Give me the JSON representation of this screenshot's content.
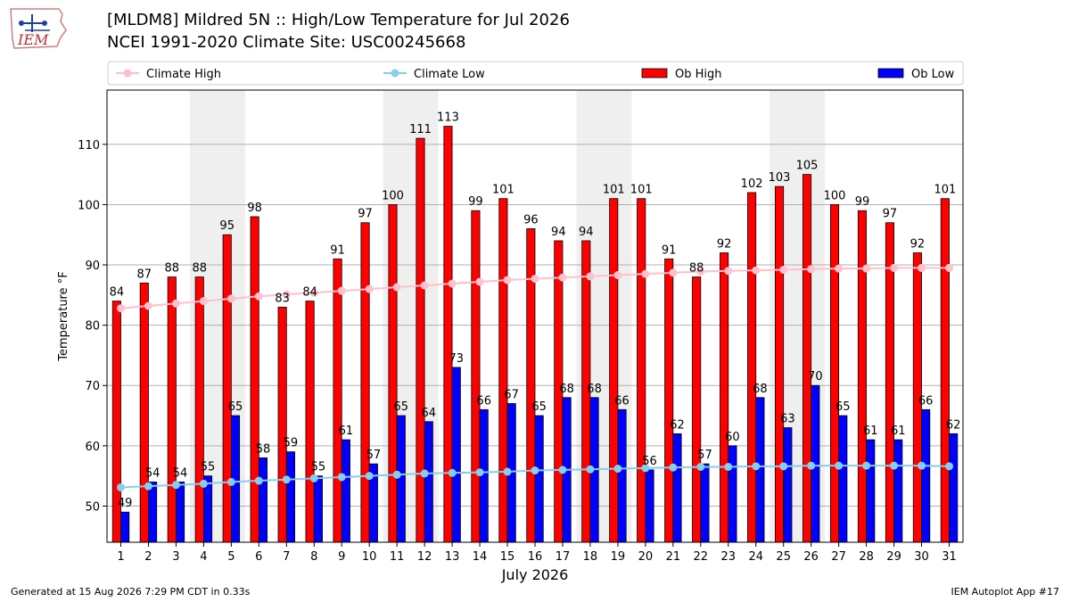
{
  "header": {
    "title_line1": "[MLDM8] Mildred 5N :: High/Low Temperature for Jul 2026",
    "title_line2": "NCEI 1991-2020 Climate Site: USC00245668",
    "logo_text": "IEM"
  },
  "footer": {
    "left": "Generated at 15 Aug 2026 7:29 PM CDT in 0.33s",
    "right": "IEM Autoplot App #17"
  },
  "chart_data": {
    "type": "bar",
    "xlabel": "July 2026",
    "ylabel": "Temperature °F",
    "ylim": [
      44,
      119
    ],
    "yticks": [
      50,
      60,
      70,
      80,
      90,
      100,
      110
    ],
    "grid": "horizontal",
    "legend_position": "top",
    "weekend_shading_days": [
      4,
      5,
      11,
      12,
      18,
      19,
      25,
      26
    ],
    "categories": [
      "1",
      "2",
      "3",
      "4",
      "5",
      "6",
      "7",
      "8",
      "9",
      "10",
      "11",
      "12",
      "13",
      "14",
      "15",
      "16",
      "17",
      "18",
      "19",
      "20",
      "21",
      "22",
      "23",
      "24",
      "25",
      "26",
      "27",
      "28",
      "29",
      "30",
      "31"
    ],
    "series": [
      {
        "name": "Ob High",
        "kind": "bar",
        "color": "#ff0000",
        "values": [
          84,
          87,
          88,
          88,
          95,
          98,
          83,
          84,
          91,
          97,
          100,
          111,
          113,
          99,
          101,
          96,
          94,
          94,
          101,
          101,
          91,
          88,
          92,
          102,
          103,
          105,
          100,
          99,
          97,
          92,
          101
        ]
      },
      {
        "name": "Ob Low",
        "kind": "bar",
        "color": "#0000ff",
        "values": [
          49,
          54,
          54,
          55,
          65,
          58,
          59,
          55,
          61,
          57,
          65,
          64,
          73,
          66,
          67,
          65,
          68,
          68,
          66,
          56,
          62,
          57,
          60,
          68,
          63,
          70,
          65,
          61,
          61,
          66,
          62
        ]
      },
      {
        "name": "Climate High",
        "kind": "line",
        "color": "#ffc0cb",
        "values": [
          82.8,
          83.2,
          83.6,
          84.0,
          84.4,
          84.8,
          85.1,
          85.4,
          85.7,
          86.0,
          86.3,
          86.6,
          86.9,
          87.2,
          87.5,
          87.7,
          87.9,
          88.1,
          88.3,
          88.5,
          88.7,
          88.9,
          89.0,
          89.1,
          89.2,
          89.3,
          89.4,
          89.4,
          89.5,
          89.5,
          89.5
        ]
      },
      {
        "name": "Climate Low",
        "kind": "line",
        "color": "#87ceeb",
        "values": [
          53.1,
          53.3,
          53.5,
          53.7,
          54.0,
          54.2,
          54.4,
          54.6,
          54.8,
          55.0,
          55.2,
          55.4,
          55.5,
          55.6,
          55.7,
          55.9,
          56.0,
          56.1,
          56.2,
          56.3,
          56.4,
          56.5,
          56.5,
          56.6,
          56.6,
          56.7,
          56.7,
          56.7,
          56.7,
          56.7,
          56.6
        ]
      }
    ],
    "legend": [
      "Climate High",
      "Climate Low",
      "Ob High",
      "Ob Low"
    ]
  }
}
